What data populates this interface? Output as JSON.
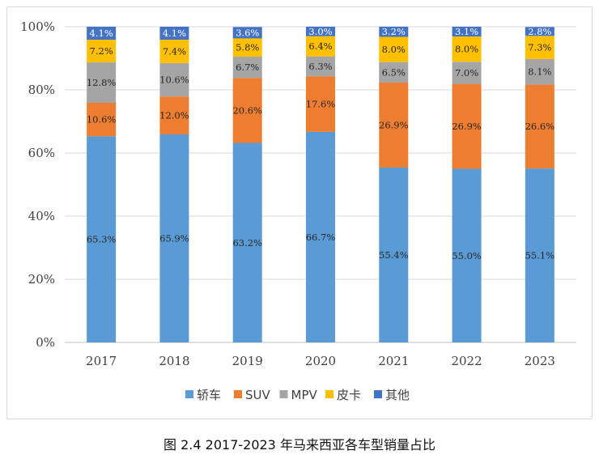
{
  "caption": "图 2.4 2017-2023 年马来西亚各车型销量占比",
  "chart_data": {
    "type": "bar",
    "stacked": true,
    "categories": [
      "2017",
      "2018",
      "2019",
      "2020",
      "2021",
      "2022",
      "2023"
    ],
    "ylim": [
      0,
      100
    ],
    "yticks": [
      "0%",
      "20%",
      "40%",
      "60%",
      "80%",
      "100%"
    ],
    "grid": true,
    "legend_position": "bottom",
    "series": [
      {
        "name": "轿车",
        "color": "#5b9bd5",
        "values": [
          65.3,
          65.9,
          63.2,
          66.7,
          55.4,
          55.0,
          55.1
        ],
        "labels": [
          "65.3%",
          "65.9%",
          "63.2%",
          "66.7%",
          "55.4%",
          "55.0%",
          "55.1%"
        ]
      },
      {
        "name": "SUV",
        "color": "#ed7d31",
        "values": [
          10.6,
          12.0,
          20.6,
          17.6,
          26.9,
          26.9,
          26.6
        ],
        "labels": [
          "10.6%",
          "12.0%",
          "20.6%",
          "17.6%",
          "26.9%",
          "26.9%",
          "26.6%"
        ]
      },
      {
        "name": "MPV",
        "color": "#a5a5a5",
        "values": [
          12.8,
          10.6,
          6.7,
          6.3,
          6.5,
          7.0,
          8.1
        ],
        "labels": [
          "12.8%",
          "10.6%",
          "6.7%",
          "6.3%",
          "6.5%",
          "7.0%",
          "8.1%"
        ]
      },
      {
        "name": "皮卡",
        "color": "#ffc000",
        "values": [
          7.2,
          7.4,
          5.8,
          6.4,
          8.0,
          8.0,
          7.3
        ],
        "labels": [
          "7.2%",
          "7.4%",
          "5.8%",
          "6.4%",
          "8.0%",
          "8.0%",
          "7.3%"
        ]
      },
      {
        "name": "其他",
        "color": "#4472c4",
        "values": [
          4.1,
          4.1,
          3.6,
          3.0,
          3.2,
          3.1,
          2.8
        ],
        "labels": [
          "4.1%",
          "4.1%",
          "3.6%",
          "3.0%",
          "3.2%",
          "3.1%",
          "2.8%"
        ]
      }
    ]
  }
}
